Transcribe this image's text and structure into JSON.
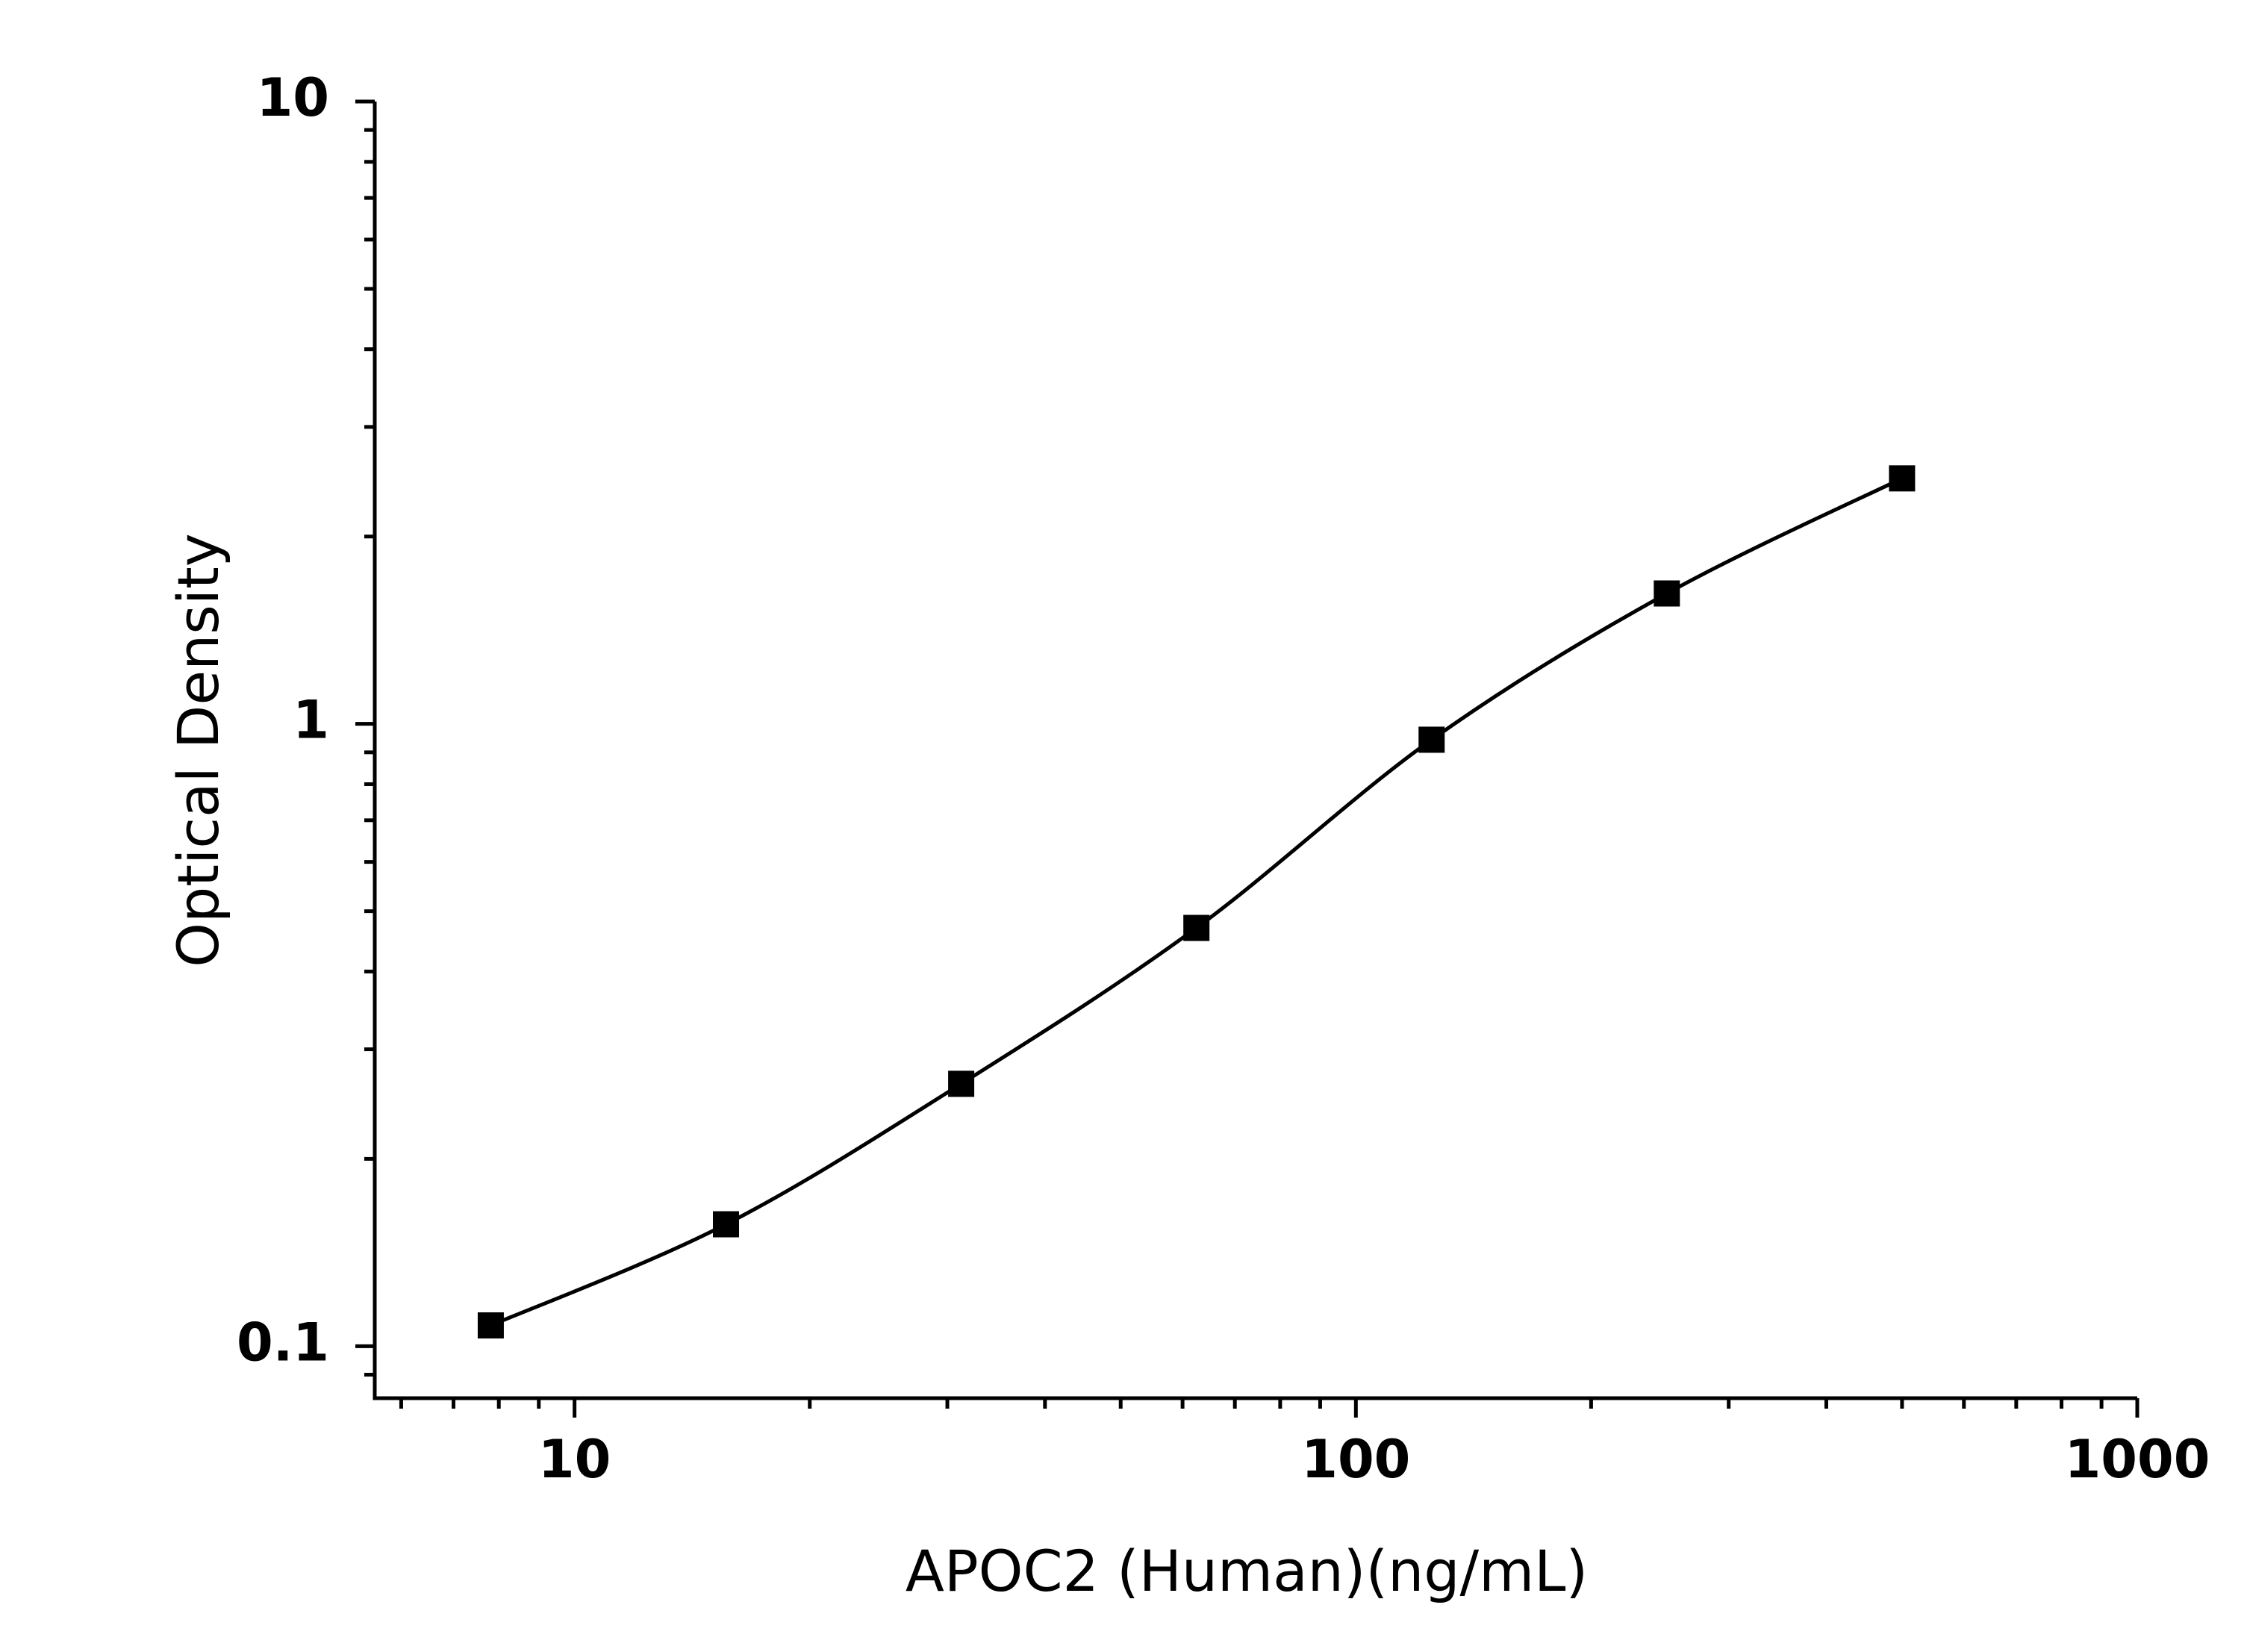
{
  "chart_data": {
    "type": "scatter",
    "x_label": "APOC2 (Human)(ng/mL)",
    "y_label": "Optical Density",
    "x": [
      7.8125,
      15.625,
      31.25,
      62.5,
      125,
      250,
      500
    ],
    "values": [
      0.108,
      0.157,
      0.264,
      0.47,
      0.943,
      1.62,
      2.48
    ],
    "color": "#000000",
    "fit_line": true,
    "xlog": true,
    "ylog": true,
    "xlim": [
      5.55,
      1000
    ],
    "ylim": [
      0.0825,
      10
    ],
    "xticks": [
      10,
      100,
      1000
    ],
    "yticks": [
      0.1,
      1,
      10
    ],
    "grid": false
  }
}
